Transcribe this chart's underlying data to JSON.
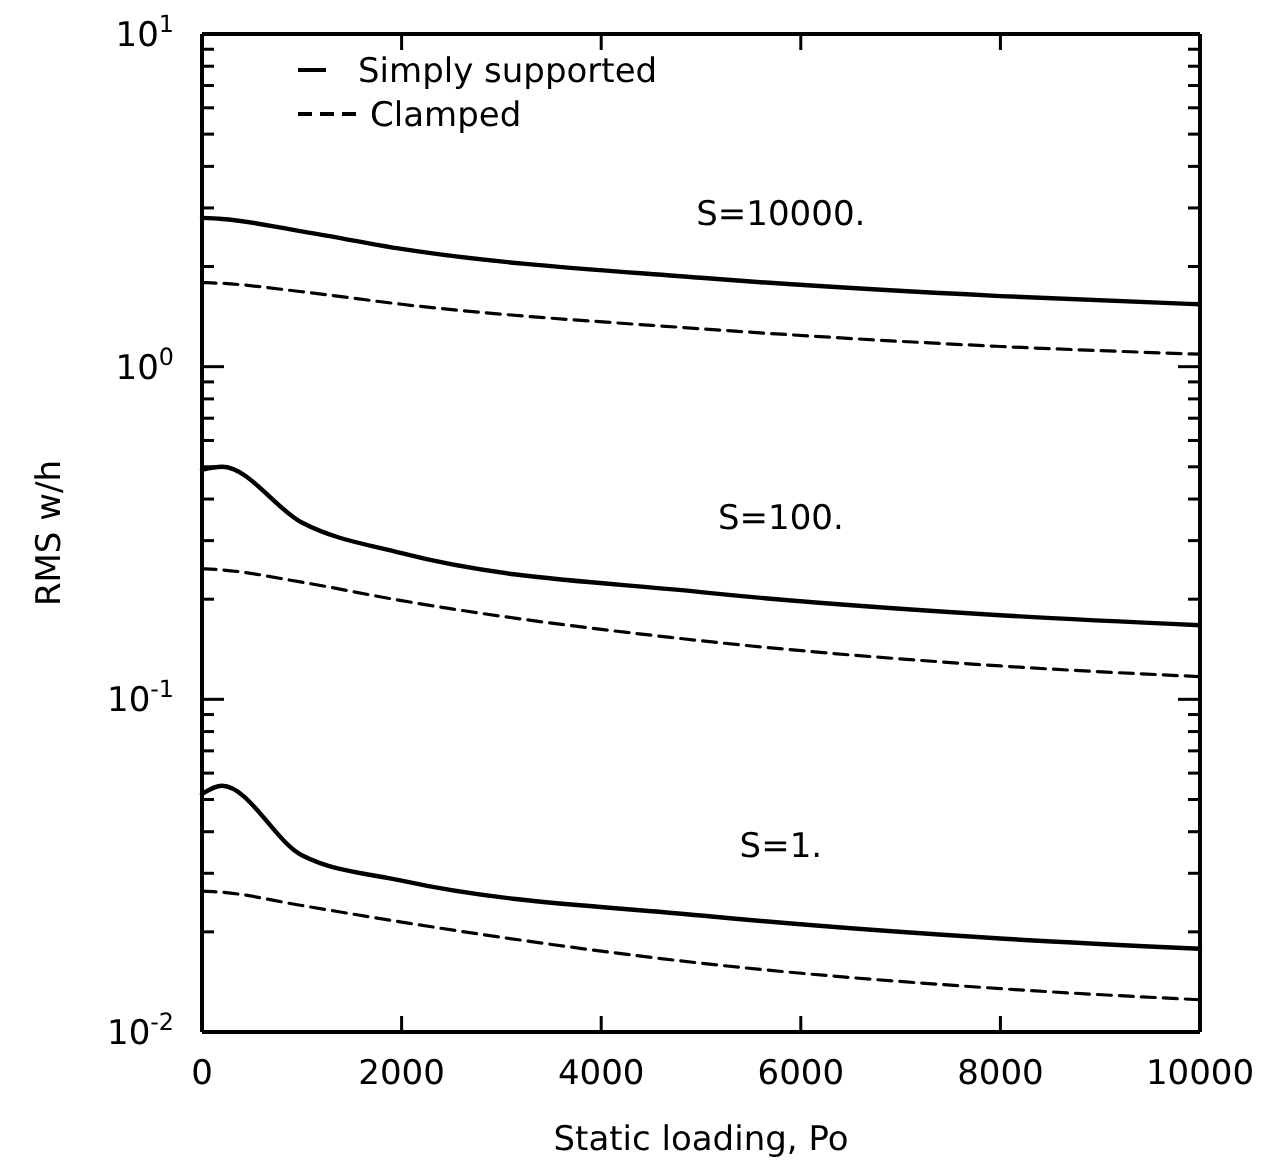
{
  "chart_data": {
    "type": "line",
    "xlabel": "Static loading, Po",
    "ylabel": "RMS w/h",
    "log": "y",
    "legend": "top left",
    "grid": false,
    "marker": "none",
    "x": [
      0,
      200,
      1000,
      2000,
      5000,
      8000,
      10000
    ],
    "xlim": [
      0,
      10000
    ],
    "xticks": [
      0,
      2000,
      4000,
      6000,
      8000,
      10000
    ],
    "ylim": [
      0.01,
      10
    ],
    "yticks": [
      {
        "value": 10,
        "label": "10$^{1}$"
      },
      {
        "value": 1,
        "label": "10$^{0}$"
      },
      {
        "value": 0.1,
        "label": "10$^{-1}$"
      },
      {
        "value": 0.01,
        "label": "10$^{-2}$"
      },
      {
        "value": 0.02,
        "label": null
      },
      {
        "value": 0.03,
        "label": null
      },
      {
        "value": 0.04,
        "label": null
      },
      {
        "value": 0.05,
        "label": null
      },
      {
        "value": 0.06,
        "label": null
      },
      {
        "value": 0.07,
        "label": null
      },
      {
        "value": 0.08,
        "label": null
      },
      {
        "value": 0.09,
        "label": null
      },
      {
        "value": 0.2,
        "label": null
      },
      {
        "value": 0.3,
        "label": null
      },
      {
        "value": 0.4,
        "label": null
      },
      {
        "value": 0.5,
        "label": null
      },
      {
        "value": 0.6,
        "label": null
      },
      {
        "value": 0.7,
        "label": null
      },
      {
        "value": 0.8,
        "label": null
      },
      {
        "value": 0.9,
        "label": null
      },
      {
        "value": 2,
        "label": null
      },
      {
        "value": 3,
        "label": null
      },
      {
        "value": 4,
        "label": null
      },
      {
        "value": 5,
        "label": null
      },
      {
        "value": 6,
        "label": null
      },
      {
        "value": 7,
        "label": null
      },
      {
        "value": 8,
        "label": null
      },
      {
        "value": 9,
        "label": null
      }
    ],
    "series": [
      {
        "name": "Simply supported",
        "color": "#000000",
        "line_style": "solid",
        "values": [
          2.8,
          2.78,
          2.55,
          2.26,
          1.85,
          1.63,
          1.54
        ]
      },
      {
        "name": "Clamped",
        "color": "#000000",
        "line_style": "dashed",
        "values": [
          1.79,
          1.78,
          1.68,
          1.54,
          1.3,
          1.15,
          1.09
        ]
      },
      {
        "color": "#000000",
        "line_style": "solid",
        "values": [
          0.49,
          0.5,
          0.34,
          0.275,
          0.21,
          0.179,
          0.167
        ]
      },
      {
        "color": "#000000",
        "line_style": "dashed",
        "values": [
          0.247,
          0.245,
          0.225,
          0.198,
          0.15,
          0.126,
          0.117
        ]
      },
      {
        "color": "#000000",
        "line_style": "solid",
        "values": [
          0.052,
          0.055,
          0.034,
          0.0285,
          0.0224,
          0.0191,
          0.0178
        ]
      },
      {
        "color": "#000000",
        "line_style": "dashed",
        "values": [
          0.0265,
          0.0263,
          0.024,
          0.0214,
          0.0161,
          0.0135,
          0.0125
        ]
      }
    ],
    "annotations": [
      "S=10000.",
      "S=100.",
      "S=1."
    ]
  }
}
